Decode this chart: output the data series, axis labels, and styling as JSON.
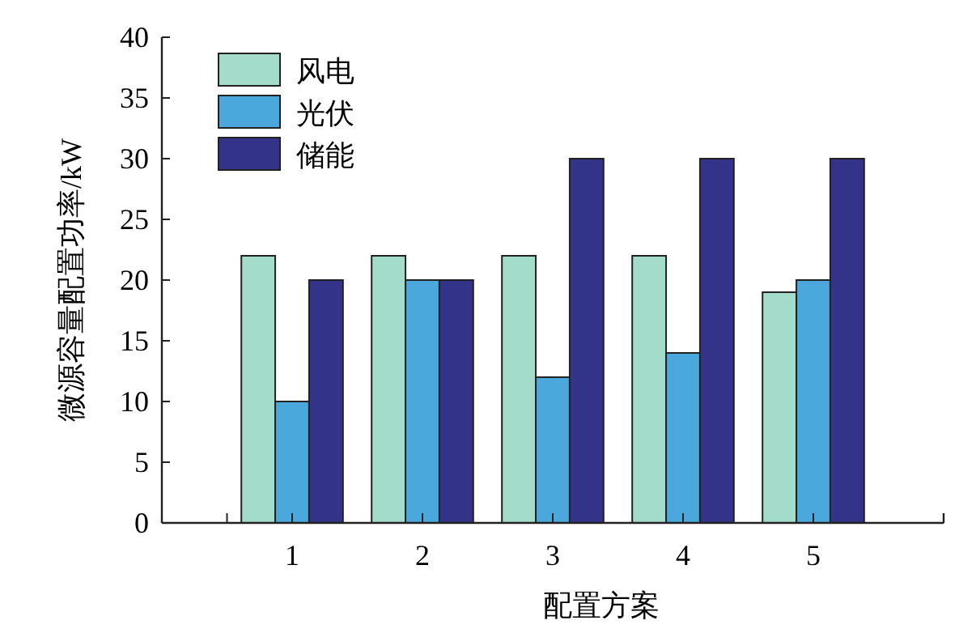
{
  "chart_data": {
    "type": "bar",
    "xlabel": "配置方案",
    "ylabel": "微源容量配置功率/kW",
    "categories": [
      "1",
      "2",
      "3",
      "4",
      "5"
    ],
    "series": [
      {
        "name": "风电",
        "color": "#a3dccb",
        "values": [
          22,
          22,
          22,
          22,
          19
        ]
      },
      {
        "name": "光伏",
        "color": "#4aa8dc",
        "values": [
          10,
          20,
          12,
          14,
          20
        ]
      },
      {
        "name": "储能",
        "color": "#33338a",
        "values": [
          20,
          20,
          30,
          30,
          30
        ]
      }
    ],
    "ylim": [
      0,
      40
    ],
    "yticks": [
      0,
      5,
      10,
      15,
      20,
      25,
      30,
      35,
      40
    ],
    "grid": false,
    "legend": "top left"
  }
}
